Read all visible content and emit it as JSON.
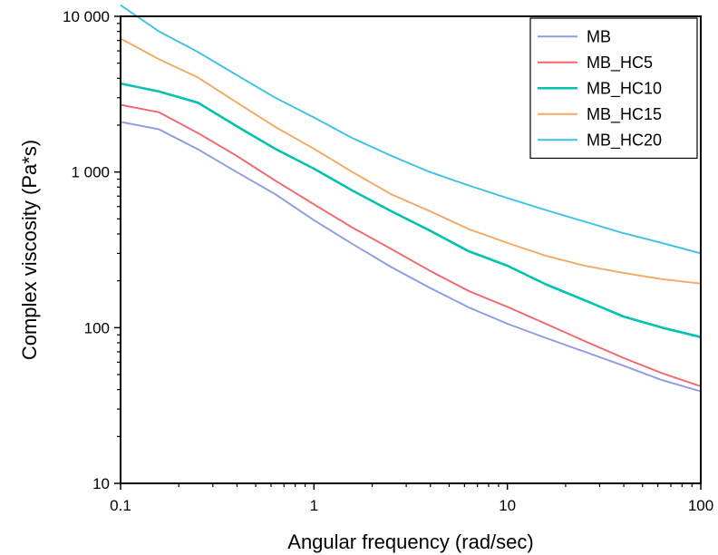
{
  "chart_data": {
    "type": "line",
    "xlabel": "Angular frequency (rad/sec)",
    "ylabel": "Complex viscosity (Pa*s)",
    "xscale": "log",
    "yscale": "log",
    "xlim": [
      0.1,
      100
    ],
    "ylim": [
      10,
      10000
    ],
    "xticks": [
      {
        "value": 0.1,
        "label": "0.1"
      },
      {
        "value": 1,
        "label": "1"
      },
      {
        "value": 10,
        "label": "10"
      },
      {
        "value": 100,
        "label": "100"
      }
    ],
    "yticks": [
      {
        "value": 10,
        "label": "10"
      },
      {
        "value": 100,
        "label": "100"
      },
      {
        "value": 1000,
        "label": "1 000"
      },
      {
        "value": 10000,
        "label": "10 000"
      }
    ],
    "grid": false,
    "legend_position": "top-right",
    "x": [
      0.1,
      0.158,
      0.251,
      0.398,
      0.631,
      1,
      1.58,
      2.51,
      3.98,
      6.31,
      10,
      15.8,
      25.1,
      39.8,
      63.1,
      100
    ],
    "series": [
      {
        "name": "MB",
        "color": "#8E9BE6",
        "values": [
          2100,
          1880,
          1400,
          1000,
          720,
          490,
          345,
          245,
          180,
          135,
          106,
          86,
          70,
          57,
          46,
          39
        ]
      },
      {
        "name": "MB_HC5",
        "color": "#F2666B",
        "values": [
          2700,
          2420,
          1780,
          1270,
          880,
          620,
          440,
          320,
          232,
          172,
          136,
          106,
          82,
          64,
          51,
          42
        ]
      },
      {
        "name": "MB_HC10",
        "color": "#00C2B0",
        "values": [
          3700,
          3290,
          2790,
          1970,
          1410,
          1050,
          760,
          560,
          420,
          310,
          250,
          190,
          150,
          118,
          100,
          87
        ]
      },
      {
        "name": "MB_HC15",
        "color": "#F5A860",
        "values": [
          7200,
          5300,
          4050,
          2800,
          1950,
          1410,
          1000,
          720,
          560,
          430,
          350,
          290,
          250,
          225,
          205,
          192
        ]
      },
      {
        "name": "MB_HC20",
        "color": "#3CC0E6",
        "values": [
          11800,
          8000,
          5900,
          4200,
          3000,
          2240,
          1650,
          1270,
          1000,
          820,
          680,
          570,
          480,
          405,
          350,
          300
        ]
      }
    ]
  }
}
